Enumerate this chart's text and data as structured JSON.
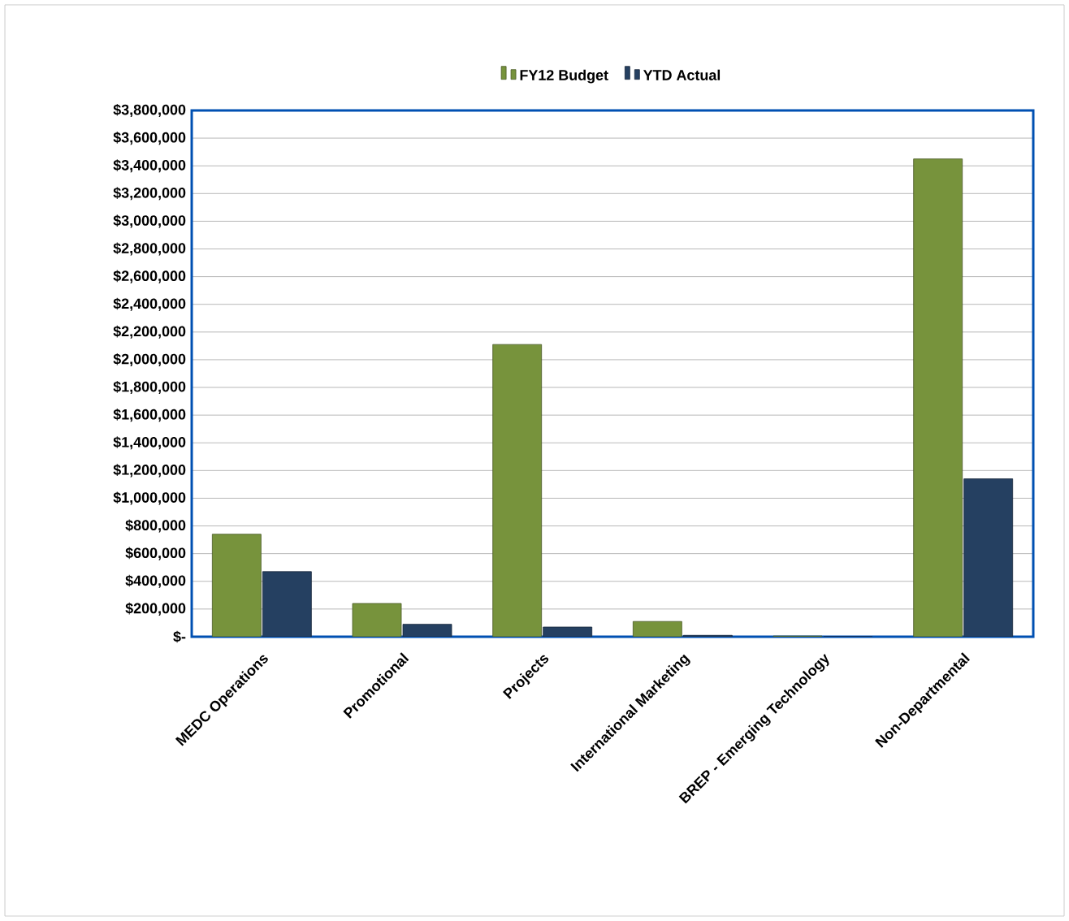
{
  "chart_data": {
    "type": "bar",
    "categories": [
      "MEDC Operations",
      "Promotional",
      "Projects",
      "International Marketing",
      "BREP - Emerging Technology",
      "Non-Departmental"
    ],
    "series": [
      {
        "name": "FY12 Budget",
        "color": "#77933c",
        "values": [
          740000,
          240000,
          2110000,
          110000,
          5000,
          3450000
        ]
      },
      {
        "name": "YTD Actual",
        "color": "#254061",
        "values": [
          470000,
          90000,
          70000,
          10000,
          0,
          1140000
        ]
      }
    ],
    "ylim": [
      0,
      3800000
    ],
    "yticks": [
      {
        "value": 0,
        "label": "$-"
      },
      {
        "value": 200000,
        "label": "$200,000"
      },
      {
        "value": 400000,
        "label": "$400,000"
      },
      {
        "value": 600000,
        "label": "$600,000"
      },
      {
        "value": 800000,
        "label": "$800,000"
      },
      {
        "value": 1000000,
        "label": "$1,000,000"
      },
      {
        "value": 1200000,
        "label": "$1,200,000"
      },
      {
        "value": 1400000,
        "label": "$1,400,000"
      },
      {
        "value": 1600000,
        "label": "$1,600,000"
      },
      {
        "value": 1800000,
        "label": "$1,800,000"
      },
      {
        "value": 2000000,
        "label": "$2,000,000"
      },
      {
        "value": 2200000,
        "label": "$2,200,000"
      },
      {
        "value": 2400000,
        "label": "$2,400,000"
      },
      {
        "value": 2600000,
        "label": "$2,600,000"
      },
      {
        "value": 2800000,
        "label": "$2,800,000"
      },
      {
        "value": 3000000,
        "label": "$3,000,000"
      },
      {
        "value": 3200000,
        "label": "$3,200,000"
      },
      {
        "value": 3400000,
        "label": "$3,400,000"
      },
      {
        "value": 3600000,
        "label": "$3,600,000"
      },
      {
        "value": 3800000,
        "label": "$3,800,000"
      }
    ],
    "grid": "y",
    "legend": "top"
  }
}
